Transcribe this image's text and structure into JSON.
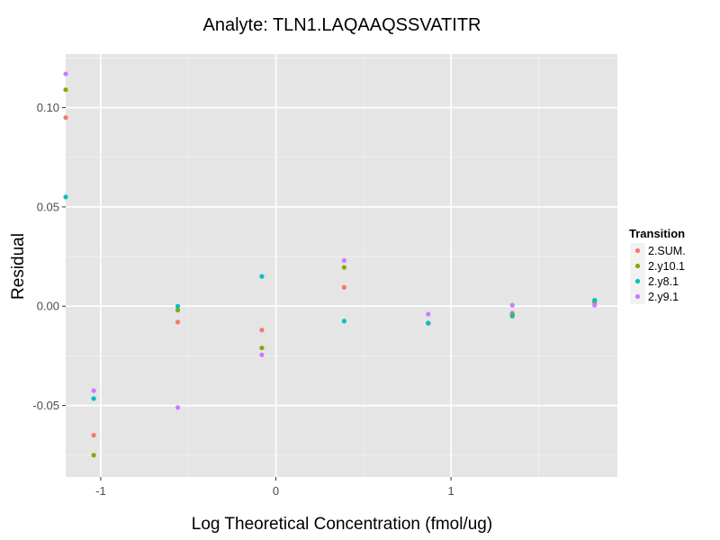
{
  "chart_data": {
    "type": "scatter",
    "title": "Analyte: TLN1.LAQAAQSSVATITR",
    "xlabel": "Log Theoretical Concentration (fmol/ug)",
    "ylabel": "Residual",
    "xlim": [
      -1.2,
      1.95
    ],
    "ylim": [
      -0.086,
      0.127
    ],
    "x_ticks": [
      -1,
      0,
      1
    ],
    "x_tick_labels": [
      "-1",
      "0",
      "1"
    ],
    "y_ticks": [
      -0.05,
      0.0,
      0.05,
      0.1
    ],
    "y_tick_labels": [
      "-0.05",
      "0.00",
      "0.05",
      "0.10"
    ],
    "legend": {
      "title": "Transition",
      "placement": "right"
    },
    "series": [
      {
        "name": "2.SUM.",
        "color": "#F8766D",
        "x": [
          -1.2,
          -1.04,
          -0.56,
          -0.08,
          0.39,
          0.87,
          1.35,
          1.82
        ],
        "y": [
          0.095,
          -0.065,
          -0.008,
          -0.012,
          0.0095,
          -0.0085,
          -0.0035,
          0.0015
        ]
      },
      {
        "name": "2.y10.1",
        "color": "#7CAE00",
        "x": [
          -1.2,
          -1.04,
          -0.56,
          -0.08,
          0.39,
          0.87,
          1.35,
          1.82
        ],
        "y": [
          0.109,
          -0.075,
          -0.002,
          -0.021,
          0.0195,
          -0.0085,
          -0.005,
          0.0025
        ]
      },
      {
        "name": "2.y8.1",
        "color": "#00BFC4",
        "x": [
          -1.2,
          -1.04,
          -0.56,
          -0.08,
          0.39,
          0.87,
          1.35,
          1.82
        ],
        "y": [
          0.055,
          -0.0465,
          0.0,
          0.015,
          -0.0075,
          -0.0085,
          -0.0045,
          0.003
        ]
      },
      {
        "name": "2.y9.1",
        "color": "#C77CFF",
        "x": [
          -1.2,
          -1.04,
          -0.56,
          -0.08,
          0.39,
          0.87,
          1.35,
          1.82
        ],
        "y": [
          0.117,
          -0.0425,
          -0.051,
          -0.0245,
          0.023,
          -0.004,
          0.0005,
          0.0005
        ]
      }
    ]
  }
}
